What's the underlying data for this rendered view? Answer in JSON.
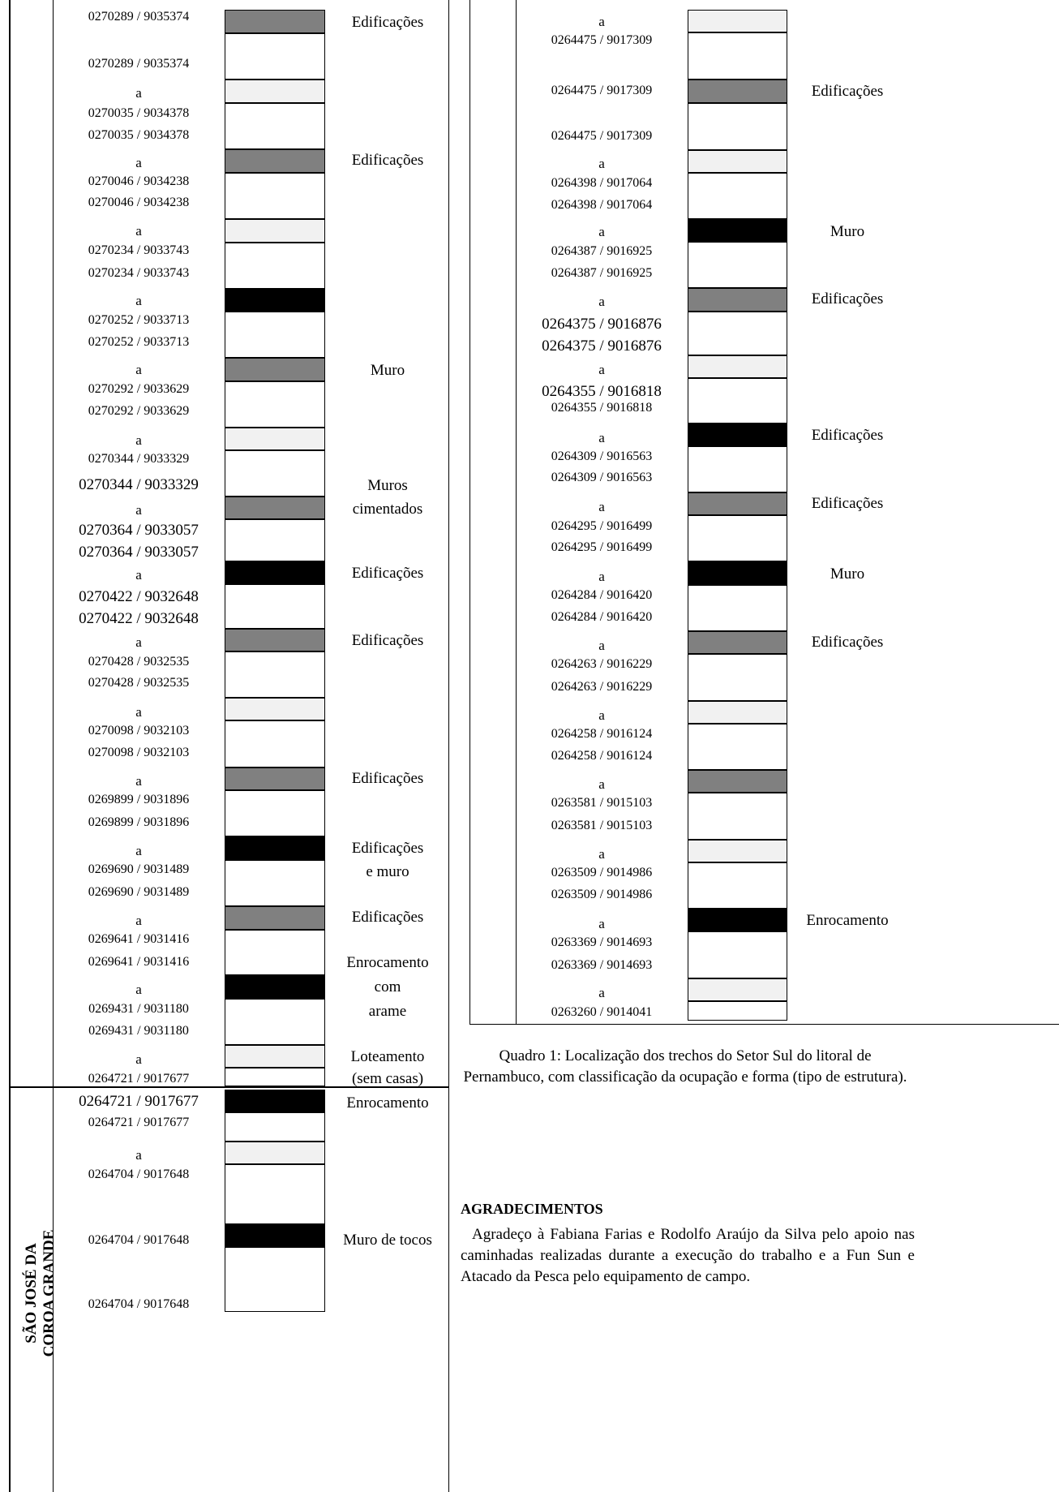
{
  "left_column": {
    "rows": [
      {
        "coord": "0270289 / 9035374",
        "y": 11
      },
      {
        "coord": "0270289 / 9035374",
        "y": 69
      },
      {
        "coord": "a",
        "y": 105,
        "kind": "a"
      },
      {
        "coord": "0270035 / 9034378",
        "y": 130
      },
      {
        "coord": "0270035 / 9034378",
        "y": 157
      },
      {
        "coord": "a",
        "y": 191,
        "kind": "a"
      },
      {
        "coord": "0270046 / 9034238",
        "y": 214
      },
      {
        "coord": "0270046 / 9034238",
        "y": 240
      },
      {
        "coord": "a",
        "y": 275,
        "kind": "a"
      },
      {
        "coord": "0270234 / 9033743",
        "y": 299
      },
      {
        "coord": "0270234 / 9033743",
        "y": 327
      },
      {
        "coord": "a",
        "y": 361,
        "kind": "a"
      },
      {
        "coord": "0270252 / 9033713",
        "y": 385
      },
      {
        "coord": "0270252 / 9033713",
        "y": 412
      },
      {
        "coord": "a",
        "y": 446,
        "kind": "a"
      },
      {
        "coord": "0270292 / 9033629",
        "y": 470
      },
      {
        "coord": "0270292 / 9033629",
        "y": 497
      },
      {
        "coord": "a",
        "y": 533,
        "kind": "a"
      },
      {
        "coord": "0270344 / 9033329",
        "y": 556
      },
      {
        "coord": "0270344 / 9033329",
        "y": 587,
        "large": true
      },
      {
        "coord": "a",
        "y": 619,
        "kind": "a"
      },
      {
        "coord": "0270364 / 9033057",
        "y": 643,
        "large": true
      },
      {
        "coord": "0270364 / 9033057",
        "y": 670,
        "large": true
      },
      {
        "coord": "a",
        "y": 699,
        "kind": "a"
      },
      {
        "coord": "0270422 / 9032648",
        "y": 725,
        "large": true
      },
      {
        "coord": "0270422 / 9032648",
        "y": 752,
        "large": true
      },
      {
        "coord": "a",
        "y": 782,
        "kind": "a"
      },
      {
        "coord": "0270428 / 9032535",
        "y": 806
      },
      {
        "coord": "0270428 / 9032535",
        "y": 832
      },
      {
        "coord": "a",
        "y": 868,
        "kind": "a"
      },
      {
        "coord": "0270098 / 9032103",
        "y": 891
      },
      {
        "coord": "0270098 / 9032103",
        "y": 918
      },
      {
        "coord": "a",
        "y": 953,
        "kind": "a"
      },
      {
        "coord": "0269899 / 9031896",
        "y": 976
      },
      {
        "coord": "0269899 / 9031896",
        "y": 1004
      },
      {
        "coord": "a",
        "y": 1039,
        "kind": "a"
      },
      {
        "coord": "0269690 / 9031489",
        "y": 1062
      },
      {
        "coord": "0269690 / 9031489",
        "y": 1090
      },
      {
        "coord": "a",
        "y": 1125,
        "kind": "a"
      },
      {
        "coord": "0269641 / 9031416",
        "y": 1148
      },
      {
        "coord": "0269641 / 9031416",
        "y": 1176
      },
      {
        "coord": "a",
        "y": 1210,
        "kind": "a"
      },
      {
        "coord": "0269431 / 9031180",
        "y": 1234
      },
      {
        "coord": "0269431 / 9031180",
        "y": 1261
      },
      {
        "coord": "a",
        "y": 1296,
        "kind": "a"
      },
      {
        "coord": "0264721 / 9017677",
        "y": 1320
      },
      {
        "coord": "0264721 / 9017677",
        "y": 1347,
        "large": true
      },
      {
        "coord": "0264721 / 9017677",
        "y": 1374
      },
      {
        "coord": "a",
        "y": 1414,
        "kind": "a"
      },
      {
        "coord": "0264704 / 9017648",
        "y": 1438
      },
      {
        "coord": "0264704 / 9017648",
        "y": 1519
      },
      {
        "coord": "0264704 / 9017648",
        "y": 1598
      }
    ],
    "bars": [
      {
        "y": 12,
        "h": 29,
        "fill": "gray"
      },
      {
        "y": 41,
        "h": 57,
        "fill": "white"
      },
      {
        "y": 98,
        "h": 29,
        "fill": "light"
      },
      {
        "y": 127,
        "h": 57,
        "fill": "white"
      },
      {
        "y": 184,
        "h": 29,
        "fill": "gray"
      },
      {
        "y": 213,
        "h": 57,
        "fill": "white"
      },
      {
        "y": 270,
        "h": 29,
        "fill": "light"
      },
      {
        "y": 299,
        "h": 57,
        "fill": "white"
      },
      {
        "y": 356,
        "h": 28,
        "fill": "black"
      },
      {
        "y": 384,
        "h": 57,
        "fill": "white"
      },
      {
        "y": 441,
        "h": 29,
        "fill": "gray"
      },
      {
        "y": 470,
        "h": 57,
        "fill": "white"
      },
      {
        "y": 527,
        "h": 28,
        "fill": "light"
      },
      {
        "y": 555,
        "h": 57,
        "fill": "white"
      },
      {
        "y": 612,
        "h": 28,
        "fill": "gray"
      },
      {
        "y": 640,
        "h": 52,
        "fill": "white"
      },
      {
        "y": 692,
        "h": 28,
        "fill": "black"
      },
      {
        "y": 720,
        "h": 55,
        "fill": "white"
      },
      {
        "y": 775,
        "h": 28,
        "fill": "gray"
      },
      {
        "y": 803,
        "h": 57,
        "fill": "white"
      },
      {
        "y": 860,
        "h": 28,
        "fill": "light"
      },
      {
        "y": 888,
        "h": 58,
        "fill": "white"
      },
      {
        "y": 946,
        "h": 28,
        "fill": "gray"
      },
      {
        "y": 974,
        "h": 57,
        "fill": "white"
      },
      {
        "y": 1031,
        "h": 29,
        "fill": "black"
      },
      {
        "y": 1060,
        "h": 57,
        "fill": "white"
      },
      {
        "y": 1117,
        "h": 29,
        "fill": "gray"
      },
      {
        "y": 1146,
        "h": 56,
        "fill": "white"
      },
      {
        "y": 1202,
        "h": 29,
        "fill": "black"
      },
      {
        "y": 1231,
        "h": 57,
        "fill": "white"
      },
      {
        "y": 1288,
        "h": 28,
        "fill": "light"
      },
      {
        "y": 1316,
        "h": 23,
        "fill": "white"
      },
      {
        "y": 1343,
        "h": 28,
        "fill": "black"
      },
      {
        "y": 1371,
        "h": 36,
        "fill": "white"
      },
      {
        "y": 1407,
        "h": 28,
        "fill": "light"
      },
      {
        "y": 1435,
        "h": 74,
        "fill": "white"
      },
      {
        "y": 1509,
        "h": 28,
        "fill": "black"
      },
      {
        "y": 1537,
        "h": 80,
        "fill": "white"
      }
    ],
    "labels": [
      {
        "text": "Edificações",
        "y": 17
      },
      {
        "text": "Edificações",
        "y": 187
      },
      {
        "text": "Muro",
        "y": 446
      },
      {
        "text": "Muros",
        "y": 588
      },
      {
        "text": "cimentados",
        "y": 617
      },
      {
        "text": "Edificações",
        "y": 696
      },
      {
        "text": "Edificações",
        "y": 779
      },
      {
        "text": "Edificações",
        "y": 949
      },
      {
        "text": "Edificações",
        "y": 1035
      },
      {
        "text": "e muro",
        "y": 1064
      },
      {
        "text": "Edificações",
        "y": 1120
      },
      {
        "text": "Enrocamento",
        "y": 1176
      },
      {
        "text": "com",
        "y": 1206
      },
      {
        "text": "arame",
        "y": 1236
      },
      {
        "text": "Loteamento",
        "y": 1292
      },
      {
        "text": "(sem casas)",
        "y": 1319
      },
      {
        "text": "Enrocamento",
        "y": 1349
      },
      {
        "text": "Muro de tocos",
        "y": 1518
      }
    ],
    "location_line1": "SÃO JOSÉ DA",
    "location_line2": "COROA GRANDE"
  },
  "right_column": {
    "rows": [
      {
        "coord": "a",
        "y": 17,
        "kind": "a"
      },
      {
        "coord": "0264475 / 9017309",
        "y": 40
      },
      {
        "coord": "0264475 / 9017309",
        "y": 102
      },
      {
        "coord": "0264475 / 9017309",
        "y": 158
      },
      {
        "coord": "a",
        "y": 192,
        "kind": "a"
      },
      {
        "coord": "0264398 / 9017064",
        "y": 216
      },
      {
        "coord": "0264398 / 9017064",
        "y": 243
      },
      {
        "coord": "a",
        "y": 276,
        "kind": "a"
      },
      {
        "coord": "0264387 / 9016925",
        "y": 300
      },
      {
        "coord": "0264387 / 9016925",
        "y": 327
      },
      {
        "coord": "a",
        "y": 362,
        "kind": "a"
      },
      {
        "coord": "0264375 / 9016876",
        "y": 389,
        "large": true
      },
      {
        "coord": "0264375 / 9016876",
        "y": 416,
        "large": true
      },
      {
        "coord": "a",
        "y": 446,
        "kind": "a"
      },
      {
        "coord": "0264355 / 9016818",
        "y": 472,
        "large": true
      },
      {
        "coord": "0264355 / 9016818",
        "y": 493
      },
      {
        "coord": "a",
        "y": 530,
        "kind": "a"
      },
      {
        "coord": "0264309 / 9016563",
        "y": 553
      },
      {
        "coord": "0264309 / 9016563",
        "y": 579
      },
      {
        "coord": "a",
        "y": 615,
        "kind": "a"
      },
      {
        "coord": "0264295 / 9016499",
        "y": 639
      },
      {
        "coord": "0264295 / 9016499",
        "y": 665
      },
      {
        "coord": "a",
        "y": 701,
        "kind": "a"
      },
      {
        "coord": "0264284 / 9016420",
        "y": 724
      },
      {
        "coord": "0264284 / 9016420",
        "y": 751
      },
      {
        "coord": "a",
        "y": 786,
        "kind": "a"
      },
      {
        "coord": "0264263 / 9016229",
        "y": 809
      },
      {
        "coord": "0264263 / 9016229",
        "y": 837
      },
      {
        "coord": "a",
        "y": 872,
        "kind": "a"
      },
      {
        "coord": "0264258 / 9016124",
        "y": 895
      },
      {
        "coord": "0264258 / 9016124",
        "y": 922
      },
      {
        "coord": "a",
        "y": 957,
        "kind": "a"
      },
      {
        "coord": "0263581 / 9015103",
        "y": 980
      },
      {
        "coord": "0263581 / 9015103",
        "y": 1008
      },
      {
        "coord": "a",
        "y": 1043,
        "kind": "a"
      },
      {
        "coord": "0263509 / 9014986",
        "y": 1066
      },
      {
        "coord": "0263509 / 9014986",
        "y": 1093
      },
      {
        "coord": "a",
        "y": 1129,
        "kind": "a"
      },
      {
        "coord": "0263369 / 9014693",
        "y": 1152
      },
      {
        "coord": "0263369 / 9014693",
        "y": 1180
      },
      {
        "coord": "a",
        "y": 1214,
        "kind": "a"
      },
      {
        "coord": "0263260 / 9014041",
        "y": 1238
      }
    ],
    "bars": [
      {
        "y": 12,
        "h": 28,
        "fill": "light"
      },
      {
        "y": 40,
        "h": 58,
        "fill": "white"
      },
      {
        "y": 98,
        "h": 29,
        "fill": "gray"
      },
      {
        "y": 127,
        "h": 58,
        "fill": "white"
      },
      {
        "y": 185,
        "h": 28,
        "fill": "light"
      },
      {
        "y": 213,
        "h": 57,
        "fill": "white"
      },
      {
        "y": 270,
        "h": 28,
        "fill": "black"
      },
      {
        "y": 298,
        "h": 57,
        "fill": "white"
      },
      {
        "y": 355,
        "h": 29,
        "fill": "gray"
      },
      {
        "y": 384,
        "h": 54,
        "fill": "white"
      },
      {
        "y": 438,
        "h": 28,
        "fill": "light"
      },
      {
        "y": 466,
        "h": 56,
        "fill": "white"
      },
      {
        "y": 522,
        "h": 28,
        "fill": "black"
      },
      {
        "y": 550,
        "h": 57,
        "fill": "white"
      },
      {
        "y": 607,
        "h": 28,
        "fill": "gray"
      },
      {
        "y": 635,
        "h": 57,
        "fill": "white"
      },
      {
        "y": 692,
        "h": 29,
        "fill": "black"
      },
      {
        "y": 721,
        "h": 57,
        "fill": "white"
      },
      {
        "y": 778,
        "h": 28,
        "fill": "gray"
      },
      {
        "y": 806,
        "h": 58,
        "fill": "white"
      },
      {
        "y": 864,
        "h": 28,
        "fill": "light"
      },
      {
        "y": 892,
        "h": 57,
        "fill": "white"
      },
      {
        "y": 949,
        "h": 28,
        "fill": "gray"
      },
      {
        "y": 977,
        "h": 58,
        "fill": "white"
      },
      {
        "y": 1035,
        "h": 28,
        "fill": "light"
      },
      {
        "y": 1063,
        "h": 57,
        "fill": "white"
      },
      {
        "y": 1120,
        "h": 28,
        "fill": "black"
      },
      {
        "y": 1148,
        "h": 58,
        "fill": "white"
      },
      {
        "y": 1206,
        "h": 28,
        "fill": "light"
      },
      {
        "y": 1234,
        "h": 24,
        "fill": "white"
      }
    ],
    "labels": [
      {
        "text": "Edificações",
        "y": 102
      },
      {
        "text": "Muro",
        "y": 275
      },
      {
        "text": "Edificações",
        "y": 358
      },
      {
        "text": "Edificações",
        "y": 526
      },
      {
        "text": "Edificações",
        "y": 610
      },
      {
        "text": "Muro",
        "y": 697
      },
      {
        "text": "Edificações",
        "y": 781
      },
      {
        "text": "Enrocamento",
        "y": 1124
      }
    ]
  },
  "caption": "Quadro 1: Localização dos trechos do Setor Sul do litoral de Pernambuco, com classificação da ocupação e forma (tipo de estrutura).",
  "acknowledgements": {
    "heading": "AGRADECIMENTOS",
    "text": "Agradeço à Fabiana Farias e Rodolfo Araújo da Silva pelo apoio nas caminhadas realizadas durante a execução do trabalho e a Fun Sun e Atacado da Pesca pelo equipamento de campo."
  }
}
